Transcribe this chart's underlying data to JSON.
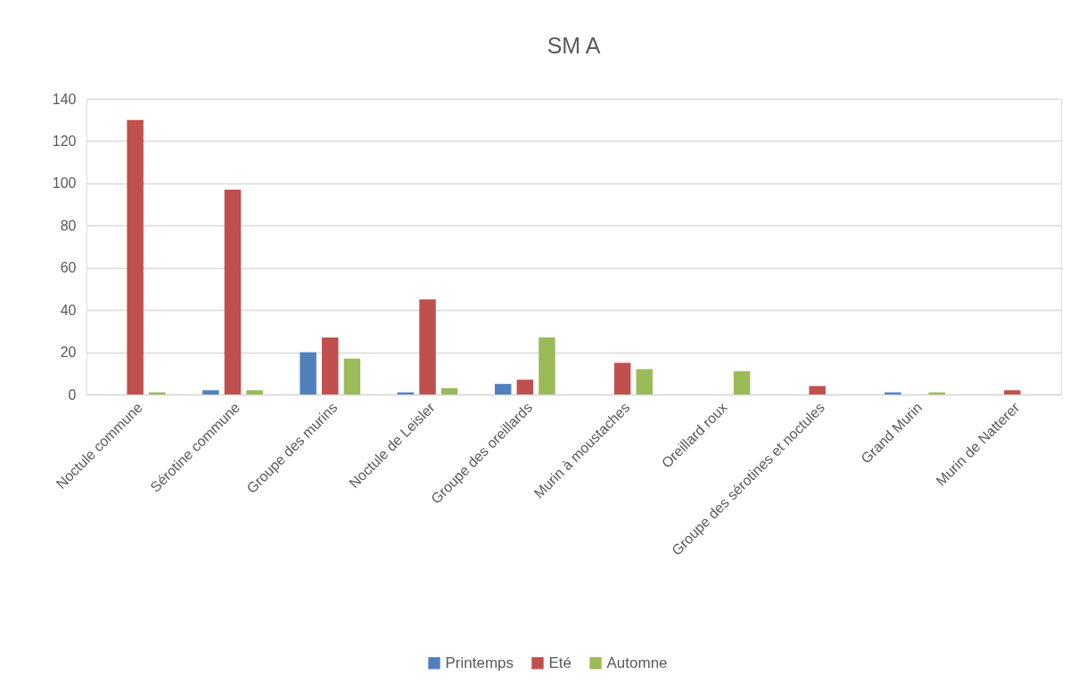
{
  "chart_data": {
    "type": "bar",
    "title": "SM A",
    "categories": [
      "Noctule commune",
      "Sérotine commune",
      "Groupe des murins",
      "Noctule de Leisler",
      "Groupe des oreillards",
      "Murin à moustaches",
      "Oreillard roux",
      "Groupe des sérotines et noctules",
      "Grand Murin",
      "Murin de Natterer"
    ],
    "series": [
      {
        "name": "Printemps",
        "color": "#4f81bd",
        "values": [
          null,
          2,
          20,
          1,
          5,
          null,
          null,
          null,
          1,
          null
        ]
      },
      {
        "name": "Eté",
        "color": "#c0504d",
        "values": [
          130,
          97,
          27,
          45,
          7,
          15,
          null,
          4,
          null,
          2
        ]
      },
      {
        "name": "Automne",
        "color": "#9bbb59",
        "values": [
          1,
          2,
          17,
          3,
          27,
          12,
          11,
          null,
          1,
          null
        ]
      }
    ],
    "ylim": [
      0,
      140
    ],
    "yticks": [
      0,
      20,
      40,
      60,
      80,
      100,
      120,
      140
    ],
    "grid": "y",
    "legend": "bottom"
  }
}
